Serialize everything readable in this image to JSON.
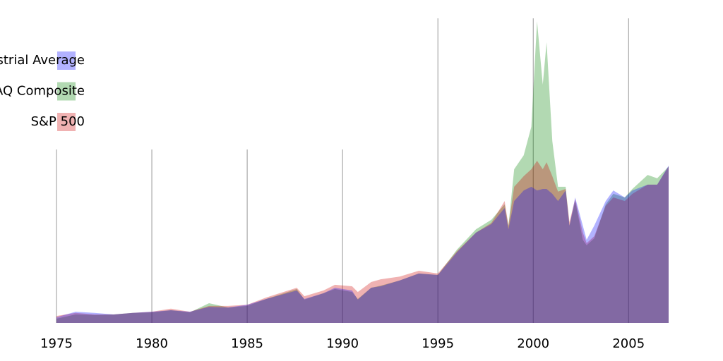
{
  "chart_data": {
    "type": "area",
    "x": [
      1975,
      1976,
      1977,
      1978,
      1979,
      1980,
      1981,
      1982,
      1983,
      1984,
      1985,
      1986,
      1987.6,
      1988,
      1989,
      1989.6,
      1990.5,
      1990.8,
      1991.5,
      1992,
      1993,
      1994,
      1995,
      1996,
      1997,
      1997.8,
      1998.5,
      1998.7,
      1999,
      1999.5,
      1999.9,
      2000.2,
      2000.5,
      2000.7,
      2001,
      2001.3,
      2001.7,
      2001.9,
      2002.2,
      2002.6,
      2002.8,
      2003.2,
      2003.8,
      2004.2,
      2004.8,
      2005.2,
      2006,
      2006.5,
      2007.1
    ],
    "series": [
      {
        "name": "NASDAQ Composite",
        "color": "#008000",
        "values": [
          1.4,
          2.8,
          2.6,
          2.8,
          3.3,
          3.5,
          4.2,
          3.5,
          6.5,
          5.1,
          5.6,
          7.9,
          11.2,
          7.7,
          9.8,
          11.2,
          10.2,
          7.9,
          11.6,
          12.3,
          14.0,
          16.3,
          15.8,
          24.2,
          30.9,
          34.0,
          39.1,
          32.1,
          50.7,
          55.3,
          64.7,
          99.5,
          78.6,
          92.6,
          60.0,
          44.9,
          44.9,
          32.1,
          40.2,
          27.4,
          25.6,
          27.9,
          39.1,
          42.6,
          41.4,
          44.2,
          48.8,
          47.7,
          51.6
        ]
      },
      {
        "name": "S&P 500",
        "color": "#cc0000",
        "values": [
          2.3,
          3.3,
          2.8,
          2.8,
          3.3,
          3.7,
          4.7,
          3.7,
          5.6,
          5.6,
          6.0,
          8.4,
          11.6,
          8.8,
          10.7,
          12.6,
          12.1,
          10.2,
          13.5,
          14.4,
          15.3,
          17.2,
          16.3,
          23.7,
          29.8,
          33.0,
          40.2,
          32.1,
          44.9,
          48.4,
          50.7,
          53.5,
          50.7,
          53.0,
          48.4,
          43.3,
          44.2,
          33.3,
          40.9,
          29.8,
          26.3,
          28.6,
          38.6,
          41.4,
          40.2,
          42.6,
          45.6,
          45.6,
          51.6
        ]
      },
      {
        "name": "Dow Jones Industrial Average",
        "color": "#0000ff",
        "values": [
          1.9,
          3.7,
          3.3,
          2.8,
          3.3,
          3.7,
          4.2,
          3.7,
          5.3,
          5.1,
          6.0,
          7.9,
          10.7,
          7.9,
          9.8,
          11.6,
          10.7,
          7.7,
          11.6,
          12.1,
          14.0,
          16.3,
          15.8,
          23.3,
          29.8,
          32.6,
          37.9,
          30.9,
          40.2,
          43.7,
          44.9,
          43.7,
          44.2,
          44.2,
          42.6,
          40.2,
          43.7,
          32.1,
          41.4,
          32.1,
          27.4,
          32.1,
          40.2,
          43.7,
          41.4,
          43.7,
          45.6,
          45.6,
          51.9
        ]
      }
    ],
    "xlim": [
      1975,
      2007.1
    ],
    "xticks": [
      1975,
      1980,
      1985,
      1990,
      1995,
      2000,
      2005
    ],
    "ylim": [
      0,
      100
    ],
    "grid": true,
    "legend": "upper left"
  }
}
